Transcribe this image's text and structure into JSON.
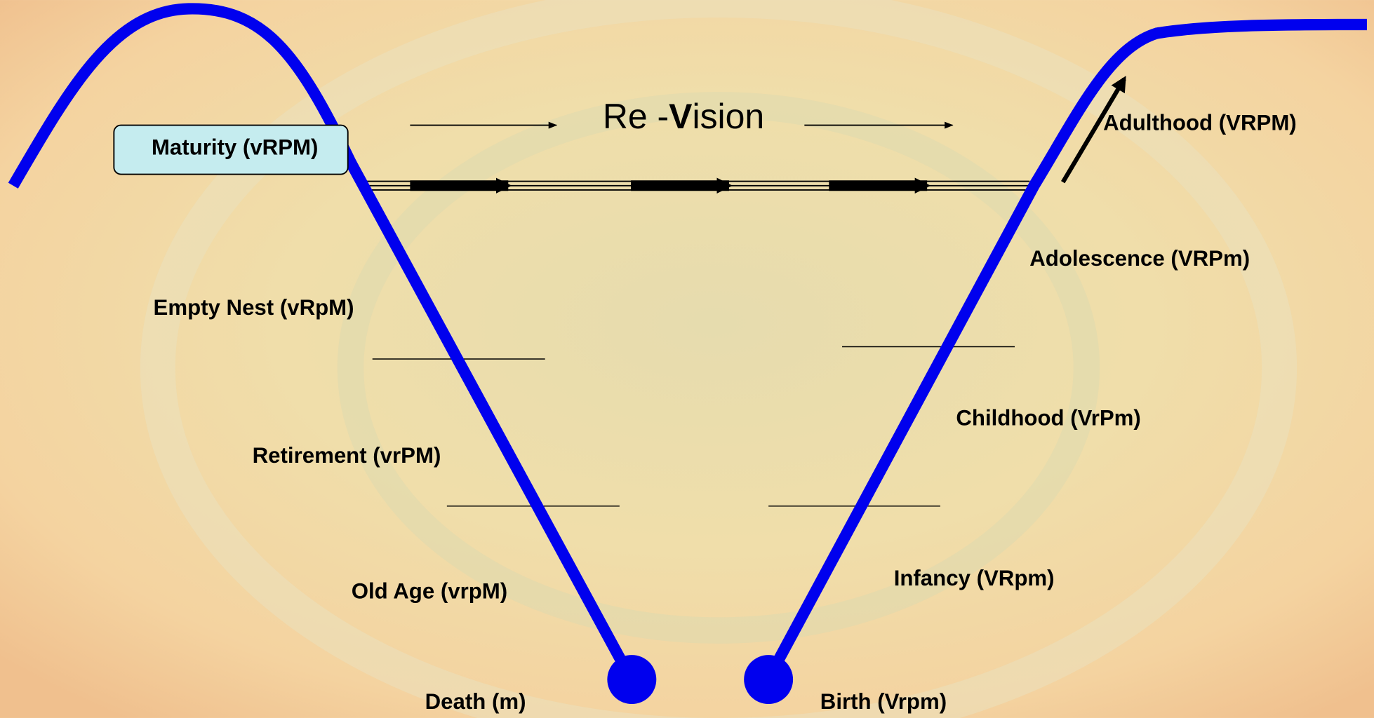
{
  "title_parts": [
    "Re -",
    "V",
    "ision"
  ],
  "labels": {
    "maturity": "Maturity (vRPM)",
    "empty_nest": "Empty Nest (vRpM)",
    "retirement": "Retirement (vrPM)",
    "old_age": "Old Age (vrpM)",
    "death": "Death (m)",
    "birth": "Birth (Vrpm)",
    "infancy": "Infancy (VRpm)",
    "childhood": "Childhood (VrPm)",
    "adolescence": "Adolescence (VRPm)",
    "adulthood": "Adulthood (VRPM)"
  }
}
